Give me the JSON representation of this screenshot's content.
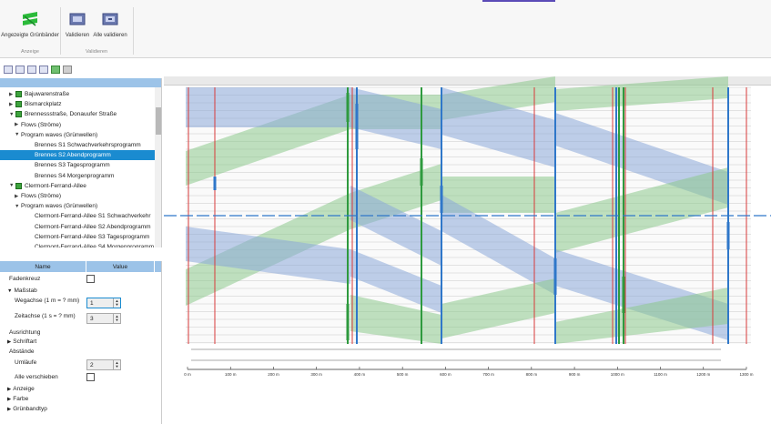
{
  "ribbon": {
    "groups": [
      {
        "label": "Anzeige",
        "buttons": [
          {
            "label": "Angezeigte Grünbänder",
            "icon": "green-bands-icon"
          }
        ]
      },
      {
        "label": "Validieren",
        "buttons": [
          {
            "label": "Validieren",
            "icon": "validate-icon"
          },
          {
            "label": "Alle validieren",
            "icon": "validate-all-icon"
          }
        ]
      }
    ]
  },
  "tree": {
    "items": [
      {
        "label": "Bajuwarenstraße",
        "level": 1,
        "twisty": "▶",
        "icon": true
      },
      {
        "label": "Bismarckplatz",
        "level": 1,
        "twisty": "▶",
        "icon": true
      },
      {
        "label": "Brennessstraße, Donauufer Straße",
        "level": 1,
        "twisty": "▼",
        "icon": true
      },
      {
        "label": "Flows (Ströme)",
        "level": 2,
        "twisty": "▶",
        "icon": false
      },
      {
        "label": "Program waves (Grünwellen)",
        "level": 2,
        "twisty": "▼",
        "icon": false
      },
      {
        "label": "Brennes S1 Schwachverkehrsprogramm",
        "level": 3,
        "twisty": "",
        "icon": false
      },
      {
        "label": "Brennes S2 Abendprogramm",
        "level": 3,
        "twisty": "",
        "icon": false,
        "selected": true
      },
      {
        "label": "Brennes S3 Tagesprogramm",
        "level": 3,
        "twisty": "",
        "icon": false
      },
      {
        "label": "Brennes S4 Morgenprogramm",
        "level": 3,
        "twisty": "",
        "icon": false
      },
      {
        "label": "Clermont-Ferrand-Allee",
        "level": 1,
        "twisty": "▼",
        "icon": true
      },
      {
        "label": "Flows (Ströme)",
        "level": 2,
        "twisty": "▶",
        "icon": false
      },
      {
        "label": "Program waves (Grünwellen)",
        "level": 2,
        "twisty": "▼",
        "icon": false
      },
      {
        "label": "Clermont-Ferrand-Allee S1 Schwachverkehr",
        "level": 3,
        "twisty": "",
        "icon": false
      },
      {
        "label": "Clermont-Ferrand-Allee S2 Abendprogramm",
        "level": 3,
        "twisty": "",
        "icon": false
      },
      {
        "label": "Clermont-Ferrand-Allee S3 Tagesprogramm",
        "level": 3,
        "twisty": "",
        "icon": false
      },
      {
        "label": "Clermont-Ferrand-Allee S4 Morgenprogramm",
        "level": 3,
        "twisty": "",
        "icon": false
      }
    ]
  },
  "properties": {
    "col_name": "Name",
    "col_value": "Value",
    "rows": [
      {
        "name": "Fadenkreuz",
        "twisty": "",
        "type": "check"
      },
      {
        "name": "Maßstab",
        "twisty": "▼",
        "type": "none"
      },
      {
        "name": "Wegachse (1 m = ? mm)",
        "twisty": "",
        "type": "num",
        "value": "1"
      },
      {
        "name": "Zeitachse (1 s = ? mm)",
        "twisty": "",
        "type": "num",
        "value": "3"
      },
      {
        "name": "Ausrichtung",
        "twisty": "",
        "type": "none"
      },
      {
        "name": "Schriftart",
        "twisty": "▶",
        "type": "none"
      },
      {
        "name": "Abstände",
        "twisty": "",
        "type": "none"
      },
      {
        "name": "Umläufe",
        "twisty": "",
        "type": "num",
        "value": "2"
      },
      {
        "name": "Alle verschieben",
        "twisty": "",
        "type": "check"
      },
      {
        "name": "Anzeige",
        "twisty": "▶",
        "type": "none"
      },
      {
        "name": "Farbe",
        "twisty": "▶",
        "type": "none"
      },
      {
        "name": "Grünbandtyp",
        "twisty": "▶",
        "type": "none"
      }
    ]
  },
  "diagram": {
    "axis_ticks": [
      "0 m",
      "100 m",
      "200 m",
      "300 m",
      "400 m",
      "500 m",
      "600 m",
      "700 m",
      "800 m",
      "900 m",
      "1000 m",
      "1100 m",
      "1200 m",
      "1300 m"
    ],
    "colors": {
      "green_band": "#8cc98c",
      "blue_band": "#8aa8d8",
      "red_line": "#d83a3a",
      "green_line": "#2e9a3e",
      "blue_line": "#2f77c9"
    }
  }
}
